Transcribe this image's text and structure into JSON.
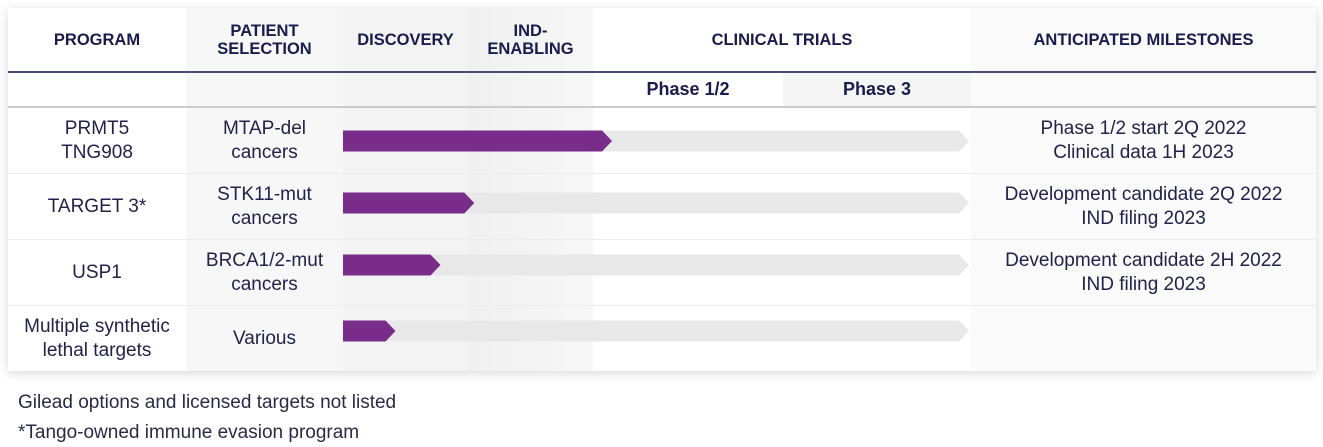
{
  "headers": {
    "program": "PROGRAM",
    "patient_selection_1": "PATIENT",
    "patient_selection_2": "SELECTION",
    "discovery": "DISCOVERY",
    "ind_enabling_1": "IND-",
    "ind_enabling_2": "ENABLING",
    "clinical_trials": "CLINICAL TRIALS",
    "milestones": "ANTICIPATED MILESTONES"
  },
  "subheaders": {
    "phase12": "Phase 1/2",
    "phase3": "Phase 3"
  },
  "stages": [
    "Discovery",
    "IND-enabling",
    "Phase 1/2",
    "Phase 3"
  ],
  "chart_data": {
    "type": "bar",
    "categories": [
      "PRMT5 TNG908",
      "TARGET 3*",
      "USP1",
      "Multiple synthetic lethal targets"
    ],
    "series": [
      {
        "values": [
          2.1,
          1.05,
          0.78,
          0.42
        ]
      }
    ],
    "xlim": [
      0,
      4
    ]
  },
  "rows": [
    {
      "program_1": "PRMT5",
      "program_2": "TNG908",
      "selection_1": "MTAP-del",
      "selection_2": "cancers",
      "milestone_1": "Phase 1/2 start 2Q 2022",
      "milestone_2": "Clinical data 1H 2023"
    },
    {
      "program_1": "TARGET 3*",
      "program_2": "",
      "selection_1": "STK11-mut",
      "selection_2": "cancers",
      "milestone_1": "Development candidate 2Q 2022",
      "milestone_2": "IND filing 2023"
    },
    {
      "program_1": "USP1",
      "program_2": "",
      "selection_1": "BRCA1/2-mut",
      "selection_2": "cancers",
      "milestone_1": "Development candidate 2H 2022",
      "milestone_2": "IND filing 2023"
    },
    {
      "program_1": "Multiple synthetic",
      "program_2": "lethal targets",
      "selection_1": "Various",
      "selection_2": "",
      "milestone_1": "",
      "milestone_2": ""
    }
  ],
  "footnotes": {
    "line1": "Gilead options and licensed targets not listed",
    "line2": "*Tango-owned immune evasion program"
  },
  "colors": {
    "progress": "#7a2c8b",
    "track": "#e8e8e8",
    "header_text": "#1b1b4d"
  }
}
